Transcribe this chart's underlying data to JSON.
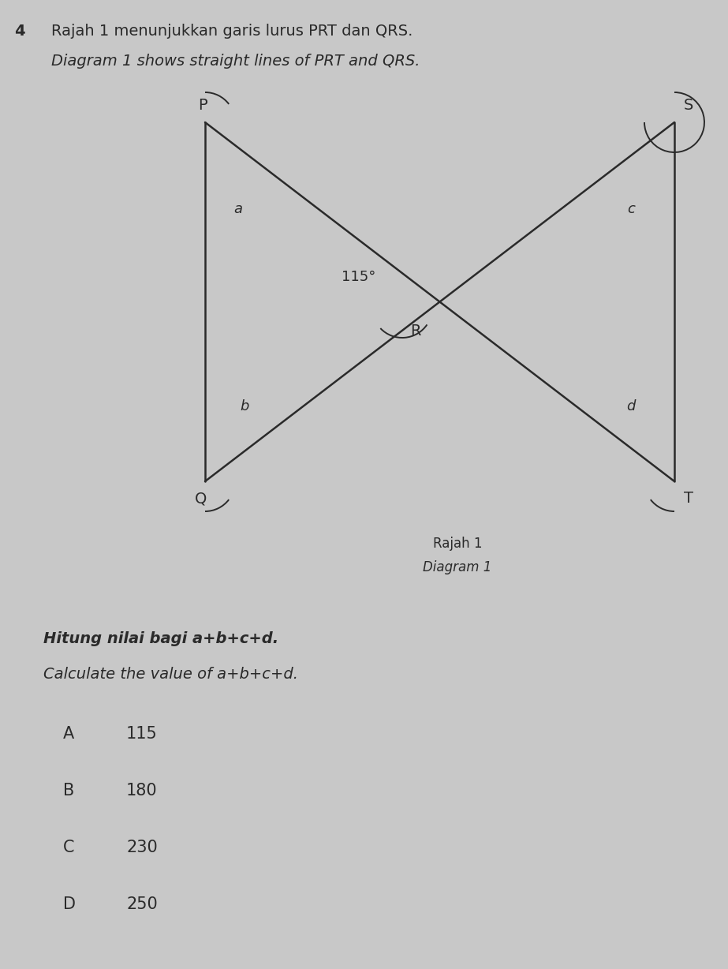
{
  "bg_color": "#c8c8c8",
  "title_line1": "Rajah 1 menunjukkan garis lurus PRT dan QRS.",
  "title_line2": "Diagram 1 shows straight lines of PRT and QRS.",
  "question_number": "4",
  "diagram_label_line1": "Rajah 1",
  "diagram_label_line2": "Diagram 1",
  "question_bold": "Hitung nilai bagi a+b+c+d.",
  "question_italic": "Calculate the value of a+b+c+d.",
  "options": [
    [
      "A",
      "115"
    ],
    [
      "B",
      "180"
    ],
    [
      "C",
      "230"
    ],
    [
      "D",
      "250"
    ]
  ],
  "angle_label": "115°",
  "line_color": "#2a2a2a",
  "text_color": "#2a2a2a",
  "font_size_title": 14,
  "font_size_labels": 13,
  "font_size_diagram_caption": 12,
  "font_size_question": 14,
  "font_size_options": 15
}
